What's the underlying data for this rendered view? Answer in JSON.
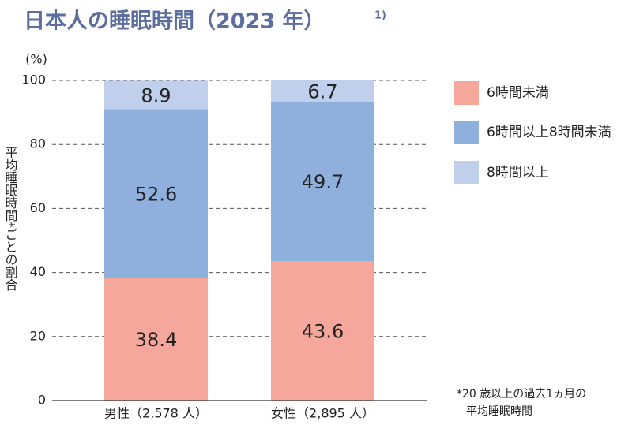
{
  "chart_data": {
    "type": "stacked_bar",
    "title": "日本人の睡眠時間（2023 年）",
    "title_superscript": "1)",
    "y_unit": "(%)",
    "y_label": "平均睡眠時間*ごとの割合",
    "categories": [
      "男性（2,578 人）",
      "女性（2,895 人）"
    ],
    "series": [
      {
        "name": "6時間未満",
        "color": "#f4a79a",
        "values": [
          38.4,
          43.6
        ]
      },
      {
        "name": "6時間以上8時間未満",
        "color": "#8fafdd",
        "values": [
          52.6,
          49.7
        ]
      },
      {
        "name": "8時間以上",
        "color": "#bfcfec",
        "values": [
          8.9,
          6.7
        ]
      }
    ],
    "ylim": [
      0,
      100
    ],
    "yticks": [
      0,
      20,
      40,
      60,
      80,
      100
    ],
    "grid": true,
    "legend": "right",
    "footnote": [
      "*20 歳以上の過去1ヵ月の",
      "平均睡眠時間"
    ]
  }
}
